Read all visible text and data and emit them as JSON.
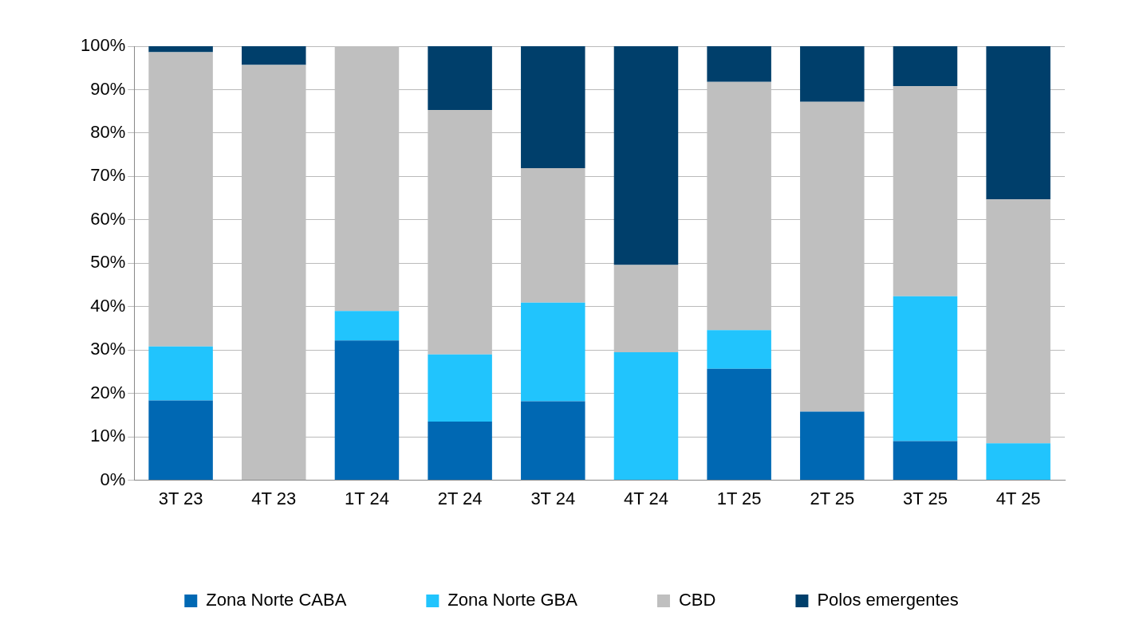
{
  "chart_data": {
    "type": "bar",
    "stacked": true,
    "categories": [
      "3T 23",
      "4T 23",
      "1T 24",
      "2T 24",
      "3T 24",
      "4T 24",
      "1T 25",
      "2T 25",
      "3T 25",
      "4T 25"
    ],
    "series": [
      {
        "name": "Zona Norte CABA",
        "color": "#0068b3",
        "values": [
          18.4,
          0,
          32.2,
          13.5,
          18.2,
          0,
          25.7,
          15.8,
          9.0,
          0
        ]
      },
      {
        "name": "Zona Norte GBA",
        "color": "#21c4fd",
        "values": [
          12.4,
          0,
          6.8,
          15.5,
          22.7,
          29.5,
          8.9,
          0,
          33.4,
          8.5
        ]
      },
      {
        "name": "CBD",
        "color": "#bfbfbf",
        "values": [
          67.8,
          95.7,
          61.0,
          56.3,
          31.0,
          20.1,
          57.2,
          71.4,
          48.4,
          56.2
        ]
      },
      {
        "name": "Polos emergentes",
        "color": "#003f6b",
        "values": [
          1.4,
          4.3,
          0,
          14.7,
          28.1,
          50.4,
          8.2,
          12.8,
          9.2,
          35.3
        ]
      }
    ],
    "ylim": [
      0,
      100
    ],
    "yticks": [
      {
        "value": 0,
        "label": "0%"
      },
      {
        "value": 10,
        "label": "10%"
      },
      {
        "value": 20,
        "label": "20%"
      },
      {
        "value": 30,
        "label": "30%"
      },
      {
        "value": 40,
        "label": "40%"
      },
      {
        "value": 50,
        "label": "50%"
      },
      {
        "value": 60,
        "label": "60%"
      },
      {
        "value": 70,
        "label": "70%"
      },
      {
        "value": 80,
        "label": "80%"
      },
      {
        "value": 90,
        "label": "90%"
      },
      {
        "value": 100,
        "label": "100%"
      }
    ],
    "grid": "y",
    "legend": "bottom"
  }
}
